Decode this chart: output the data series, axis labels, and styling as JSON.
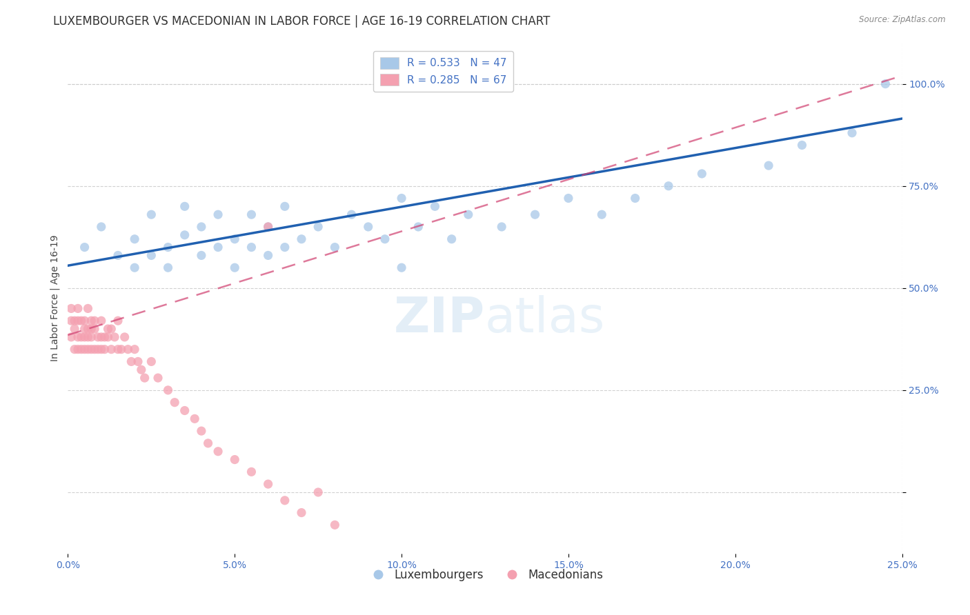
{
  "title": "LUXEMBOURGER VS MACEDONIAN IN LABOR FORCE | AGE 16-19 CORRELATION CHART",
  "source_text": "Source: ZipAtlas.com",
  "ylabel": "In Labor Force | Age 16-19",
  "xlim": [
    0.0,
    0.25
  ],
  "ylim": [
    -0.15,
    1.1
  ],
  "xticks": [
    0.0,
    0.05,
    0.1,
    0.15,
    0.2,
    0.25
  ],
  "yticks": [
    0.0,
    0.25,
    0.5,
    0.75,
    1.0
  ],
  "xticklabels": [
    "0.0%",
    "5.0%",
    "10.0%",
    "15.0%",
    "20.0%",
    "25.0%"
  ],
  "yticklabels": [
    "",
    "25.0%",
    "50.0%",
    "75.0%",
    "100.0%"
  ],
  "r_luxembourger": 0.533,
  "n_luxembourger": 47,
  "r_macedonian": 0.285,
  "n_macedonian": 67,
  "blue_scatter_color": "#a8c8e8",
  "pink_scatter_color": "#f4a0b0",
  "blue_line_color": "#2060b0",
  "pink_line_color": "#d04070",
  "watermark_zip": "ZIP",
  "watermark_atlas": "atlas",
  "title_fontsize": 12,
  "axis_label_fontsize": 10,
  "tick_fontsize": 10,
  "lux_x": [
    0.005,
    0.01,
    0.015,
    0.02,
    0.02,
    0.025,
    0.025,
    0.03,
    0.03,
    0.035,
    0.035,
    0.04,
    0.04,
    0.045,
    0.045,
    0.05,
    0.05,
    0.055,
    0.055,
    0.06,
    0.06,
    0.065,
    0.065,
    0.07,
    0.075,
    0.08,
    0.085,
    0.09,
    0.095,
    0.1,
    0.1,
    0.105,
    0.11,
    0.115,
    0.12,
    0.13,
    0.14,
    0.15,
    0.16,
    0.17,
    0.18,
    0.19,
    0.21,
    0.22,
    0.235,
    0.245,
    0.125
  ],
  "lux_y": [
    0.6,
    0.65,
    0.58,
    0.62,
    0.55,
    0.58,
    0.68,
    0.6,
    0.55,
    0.63,
    0.7,
    0.58,
    0.65,
    0.6,
    0.68,
    0.55,
    0.62,
    0.6,
    0.68,
    0.58,
    0.65,
    0.6,
    0.7,
    0.62,
    0.65,
    0.6,
    0.68,
    0.65,
    0.62,
    0.55,
    0.72,
    0.65,
    0.7,
    0.62,
    0.68,
    0.65,
    0.68,
    0.72,
    0.68,
    0.72,
    0.75,
    0.78,
    0.8,
    0.85,
    0.88,
    1.0,
    1.0
  ],
  "mac_x": [
    0.001,
    0.001,
    0.001,
    0.002,
    0.002,
    0.002,
    0.003,
    0.003,
    0.003,
    0.003,
    0.004,
    0.004,
    0.004,
    0.005,
    0.005,
    0.005,
    0.005,
    0.006,
    0.006,
    0.006,
    0.006,
    0.007,
    0.007,
    0.007,
    0.007,
    0.008,
    0.008,
    0.008,
    0.009,
    0.009,
    0.01,
    0.01,
    0.01,
    0.011,
    0.011,
    0.012,
    0.012,
    0.013,
    0.013,
    0.014,
    0.015,
    0.015,
    0.016,
    0.017,
    0.018,
    0.019,
    0.02,
    0.021,
    0.022,
    0.023,
    0.025,
    0.027,
    0.03,
    0.032,
    0.035,
    0.038,
    0.04,
    0.042,
    0.045,
    0.05,
    0.055,
    0.06,
    0.065,
    0.07,
    0.075,
    0.08,
    0.06
  ],
  "mac_y": [
    0.42,
    0.38,
    0.45,
    0.4,
    0.35,
    0.42,
    0.38,
    0.42,
    0.35,
    0.45,
    0.38,
    0.42,
    0.35,
    0.4,
    0.35,
    0.42,
    0.38,
    0.35,
    0.4,
    0.38,
    0.45,
    0.35,
    0.4,
    0.42,
    0.38,
    0.35,
    0.4,
    0.42,
    0.38,
    0.35,
    0.38,
    0.35,
    0.42,
    0.38,
    0.35,
    0.4,
    0.38,
    0.35,
    0.4,
    0.38,
    0.35,
    0.42,
    0.35,
    0.38,
    0.35,
    0.32,
    0.35,
    0.32,
    0.3,
    0.28,
    0.32,
    0.28,
    0.25,
    0.22,
    0.2,
    0.18,
    0.15,
    0.12,
    0.1,
    0.08,
    0.05,
    0.02,
    -0.02,
    -0.05,
    0.0,
    -0.08,
    0.65
  ]
}
